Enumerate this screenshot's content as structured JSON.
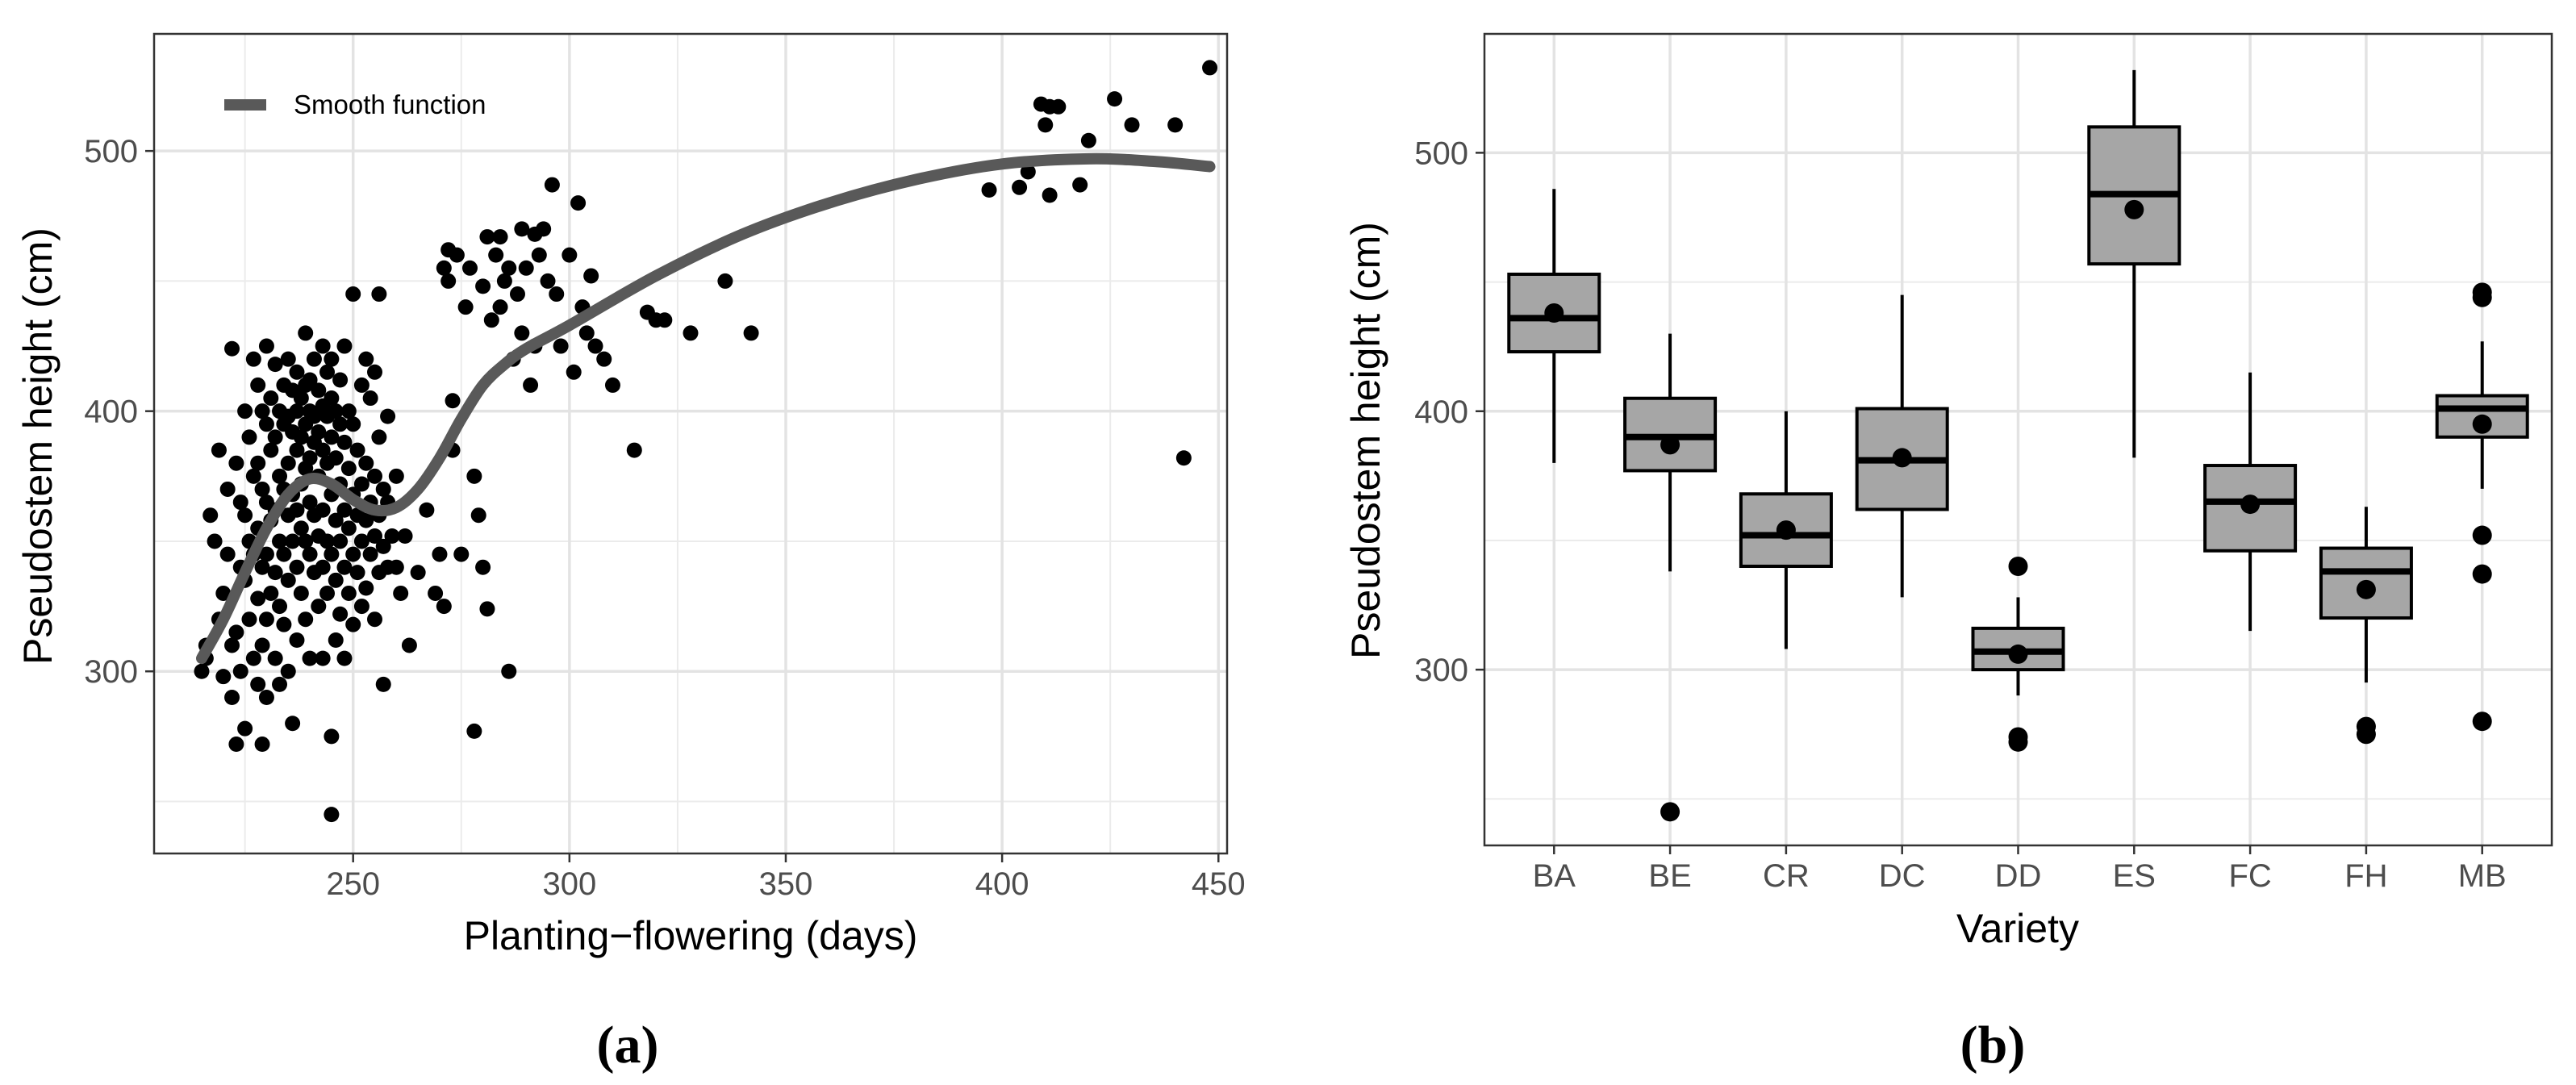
{
  "chart_data": [
    {
      "type": "scatter",
      "panel_label": "(a)",
      "xlabel": "Planting−flowering (days)",
      "ylabel": "Pseudostem height (cm)",
      "xlim": [
        204,
        452
      ],
      "ylim": [
        230,
        545
      ],
      "xticks": [
        250,
        300,
        350,
        400,
        450
      ],
      "yticks": [
        300,
        400,
        500
      ],
      "grid": true,
      "legend": {
        "position": "top-left",
        "entries": [
          "Smooth function"
        ]
      },
      "smooth_color": "#595959",
      "point_color": "#000000",
      "smooth": [
        [
          215,
          305
        ],
        [
          220,
          320
        ],
        [
          225,
          338
        ],
        [
          230,
          355
        ],
        [
          235,
          368
        ],
        [
          240,
          374
        ],
        [
          245,
          372
        ],
        [
          250,
          366
        ],
        [
          255,
          362
        ],
        [
          260,
          363
        ],
        [
          265,
          370
        ],
        [
          270,
          382
        ],
        [
          275,
          397
        ],
        [
          280,
          410
        ],
        [
          285,
          418
        ],
        [
          290,
          424
        ],
        [
          300,
          433
        ],
        [
          320,
          452
        ],
        [
          340,
          468
        ],
        [
          360,
          480
        ],
        [
          380,
          489
        ],
        [
          400,
          495
        ],
        [
          420,
          497
        ],
        [
          435,
          496
        ],
        [
          448,
          494
        ]
      ],
      "points": [
        [
          215,
          300
        ],
        [
          216,
          310
        ],
        [
          216,
          305
        ],
        [
          217,
          360
        ],
        [
          218,
          350
        ],
        [
          219,
          385
        ],
        [
          219,
          320
        ],
        [
          220,
          330
        ],
        [
          220,
          298
        ],
        [
          221,
          370
        ],
        [
          221,
          345
        ],
        [
          222,
          424
        ],
        [
          222,
          310
        ],
        [
          222,
          290
        ],
        [
          223,
          380
        ],
        [
          223,
          315
        ],
        [
          223,
          272
        ],
        [
          224,
          365
        ],
        [
          224,
          340
        ],
        [
          224,
          300
        ],
        [
          225,
          400
        ],
        [
          225,
          360
        ],
        [
          225,
          335
        ],
        [
          225,
          278
        ],
        [
          226,
          390
        ],
        [
          226,
          350
        ],
        [
          226,
          320
        ],
        [
          227,
          420
        ],
        [
          227,
          375
        ],
        [
          227,
          345
        ],
        [
          227,
          305
        ],
        [
          228,
          410
        ],
        [
          228,
          380
        ],
        [
          228,
          355
        ],
        [
          228,
          328
        ],
        [
          228,
          295
        ],
        [
          229,
          400
        ],
        [
          229,
          370
        ],
        [
          229,
          340
        ],
        [
          229,
          310
        ],
        [
          229,
          272
        ],
        [
          230,
          425
        ],
        [
          230,
          395
        ],
        [
          230,
          365
        ],
        [
          230,
          345
        ],
        [
          230,
          320
        ],
        [
          230,
          290
        ],
        [
          231,
          405
        ],
        [
          231,
          385
        ],
        [
          231,
          358
        ],
        [
          231,
          330
        ],
        [
          232,
          418
        ],
        [
          232,
          390
        ],
        [
          232,
          362
        ],
        [
          232,
          338
        ],
        [
          232,
          305
        ],
        [
          233,
          400
        ],
        [
          233,
          375
        ],
        [
          233,
          350
        ],
        [
          233,
          325
        ],
        [
          233,
          295
        ],
        [
          234,
          410
        ],
        [
          234,
          395
        ],
        [
          234,
          370
        ],
        [
          234,
          345
        ],
        [
          234,
          318
        ],
        [
          235,
          420
        ],
        [
          235,
          398
        ],
        [
          235,
          380
        ],
        [
          235,
          360
        ],
        [
          235,
          335
        ],
        [
          235,
          300
        ],
        [
          236,
          408
        ],
        [
          236,
          392
        ],
        [
          236,
          368
        ],
        [
          236,
          350
        ],
        [
          236,
          280
        ],
        [
          237,
          415
        ],
        [
          237,
          400
        ],
        [
          237,
          385
        ],
        [
          237,
          362
        ],
        [
          237,
          340
        ],
        [
          237,
          312
        ],
        [
          238,
          405
        ],
        [
          238,
          390
        ],
        [
          238,
          372
        ],
        [
          238,
          355
        ],
        [
          238,
          330
        ],
        [
          239,
          430
        ],
        [
          239,
          410
        ],
        [
          239,
          395
        ],
        [
          239,
          378
        ],
        [
          239,
          350
        ],
        [
          239,
          320
        ],
        [
          240,
          412
        ],
        [
          240,
          400
        ],
        [
          240,
          382
        ],
        [
          240,
          365
        ],
        [
          240,
          345
        ],
        [
          240,
          305
        ],
        [
          241,
          420
        ],
        [
          241,
          398
        ],
        [
          241,
          388
        ],
        [
          241,
          360
        ],
        [
          241,
          338
        ],
        [
          242,
          408
        ],
        [
          242,
          392
        ],
        [
          242,
          375
        ],
        [
          242,
          352
        ],
        [
          242,
          325
        ],
        [
          243,
          425
        ],
        [
          243,
          402
        ],
        [
          243,
          385
        ],
        [
          243,
          362
        ],
        [
          243,
          340
        ],
        [
          243,
          305
        ],
        [
          244,
          415
        ],
        [
          244,
          398
        ],
        [
          244,
          380
        ],
        [
          244,
          350
        ],
        [
          244,
          330
        ],
        [
          245,
          245
        ],
        [
          245,
          420
        ],
        [
          245,
          405
        ],
        [
          245,
          390
        ],
        [
          245,
          368
        ],
        [
          245,
          345
        ],
        [
          245,
          275
        ],
        [
          246,
          400
        ],
        [
          246,
          382
        ],
        [
          246,
          358
        ],
        [
          246,
          335
        ],
        [
          246,
          312
        ],
        [
          247,
          412
        ],
        [
          247,
          395
        ],
        [
          247,
          372
        ],
        [
          247,
          350
        ],
        [
          247,
          322
        ],
        [
          248,
          425
        ],
        [
          248,
          388
        ],
        [
          248,
          362
        ],
        [
          248,
          340
        ],
        [
          248,
          305
        ],
        [
          249,
          400
        ],
        [
          249,
          378
        ],
        [
          249,
          355
        ],
        [
          249,
          330
        ],
        [
          250,
          445
        ],
        [
          250,
          395
        ],
        [
          250,
          368
        ],
        [
          250,
          345
        ],
        [
          250,
          318
        ],
        [
          251,
          385
        ],
        [
          251,
          360
        ],
        [
          251,
          338
        ],
        [
          252,
          410
        ],
        [
          252,
          372
        ],
        [
          252,
          350
        ],
        [
          252,
          325
        ],
        [
          253,
          420
        ],
        [
          253,
          380
        ],
        [
          253,
          358
        ],
        [
          253,
          332
        ],
        [
          254,
          405
        ],
        [
          254,
          365
        ],
        [
          254,
          345
        ],
        [
          255,
          415
        ],
        [
          255,
          375
        ],
        [
          255,
          352
        ],
        [
          255,
          320
        ],
        [
          256,
          445
        ],
        [
          256,
          390
        ],
        [
          256,
          360
        ],
        [
          256,
          338
        ],
        [
          257,
          370
        ],
        [
          257,
          348
        ],
        [
          257,
          295
        ],
        [
          258,
          398
        ],
        [
          258,
          365
        ],
        [
          258,
          340
        ],
        [
          259,
          352
        ],
        [
          260,
          340
        ],
        [
          260,
          375
        ],
        [
          261,
          330
        ],
        [
          262,
          352
        ],
        [
          263,
          310
        ],
        [
          265,
          338
        ],
        [
          267,
          362
        ],
        [
          269,
          330
        ],
        [
          270,
          345
        ],
        [
          271,
          455
        ],
        [
          271,
          325
        ],
        [
          272,
          462
        ],
        [
          272,
          450
        ],
        [
          273,
          404
        ],
        [
          273,
          385
        ],
        [
          274,
          460
        ],
        [
          275,
          345
        ],
        [
          276,
          440
        ],
        [
          277,
          455
        ],
        [
          278,
          277
        ],
        [
          278,
          375
        ],
        [
          279,
          360
        ],
        [
          280,
          448
        ],
        [
          280,
          340
        ],
        [
          281,
          467
        ],
        [
          281,
          324
        ],
        [
          282,
          435
        ],
        [
          283,
          460
        ],
        [
          284,
          467
        ],
        [
          284,
          440
        ],
        [
          285,
          450
        ],
        [
          286,
          300
        ],
        [
          286,
          455
        ],
        [
          287,
          420
        ],
        [
          288,
          445
        ],
        [
          289,
          470
        ],
        [
          289,
          430
        ],
        [
          290,
          455
        ],
        [
          291,
          410
        ],
        [
          292,
          468
        ],
        [
          292,
          425
        ],
        [
          293,
          460
        ],
        [
          294,
          470
        ],
        [
          295,
          450
        ],
        [
          296,
          487
        ],
        [
          297,
          445
        ],
        [
          298,
          425
        ],
        [
          300,
          460
        ],
        [
          301,
          415
        ],
        [
          302,
          480
        ],
        [
          303,
          440
        ],
        [
          304,
          430
        ],
        [
          305,
          452
        ],
        [
          306,
          425
        ],
        [
          308,
          420
        ],
        [
          310,
          410
        ],
        [
          315,
          385
        ],
        [
          318,
          438
        ],
        [
          320,
          435
        ],
        [
          322,
          435
        ],
        [
          328,
          430
        ],
        [
          336,
          450
        ],
        [
          342,
          430
        ],
        [
          397,
          485
        ],
        [
          404,
          486
        ],
        [
          406,
          492
        ],
        [
          409,
          518
        ],
        [
          410,
          510
        ],
        [
          411,
          517
        ],
        [
          411,
          483
        ],
        [
          413,
          517
        ],
        [
          418,
          487
        ],
        [
          420,
          504
        ],
        [
          426,
          520
        ],
        [
          430,
          510
        ],
        [
          440,
          510
        ],
        [
          442,
          382
        ],
        [
          448,
          532
        ]
      ]
    },
    {
      "type": "box",
      "panel_label": "(b)",
      "xlabel": "Variety",
      "ylabel": "Pseudostem height (cm)",
      "ylim": [
        232,
        546
      ],
      "yticks": [
        300,
        400,
        500
      ],
      "grid": true,
      "box_fill": "#a6a6a6",
      "categories": [
        "BA",
        "BE",
        "CR",
        "DC",
        "DD",
        "ES",
        "FC",
        "FH",
        "MB"
      ],
      "boxes": [
        {
          "category": "BA",
          "min": 380,
          "q1": 423,
          "median": 436,
          "q3": 453,
          "max": 486,
          "mean": 438,
          "outliers": []
        },
        {
          "category": "BE",
          "min": 338,
          "q1": 377,
          "median": 390,
          "q3": 405,
          "max": 430,
          "mean": 387,
          "outliers": [
            245
          ]
        },
        {
          "category": "CR",
          "min": 308,
          "q1": 340,
          "median": 352,
          "q3": 368,
          "max": 400,
          "mean": 354,
          "outliers": []
        },
        {
          "category": "DC",
          "min": 328,
          "q1": 362,
          "median": 381,
          "q3": 401,
          "max": 445,
          "mean": 382,
          "outliers": []
        },
        {
          "category": "DD",
          "min": 290,
          "q1": 300,
          "median": 307,
          "q3": 316,
          "max": 328,
          "mean": 306,
          "outliers": [
            272,
            274,
            340
          ]
        },
        {
          "category": "ES",
          "min": 382,
          "q1": 457,
          "median": 484,
          "q3": 510,
          "max": 532,
          "mean": 478,
          "outliers": []
        },
        {
          "category": "FC",
          "min": 315,
          "q1": 346,
          "median": 365,
          "q3": 379,
          "max": 415,
          "mean": 364,
          "outliers": []
        },
        {
          "category": "FH",
          "min": 295,
          "q1": 320,
          "median": 338,
          "q3": 347,
          "max": 363,
          "mean": 331,
          "outliers": [
            275,
            278
          ]
        },
        {
          "category": "MB",
          "min": 370,
          "q1": 390,
          "median": 401,
          "q3": 406,
          "max": 427,
          "mean": 395,
          "outliers": [
            280,
            337,
            352,
            444,
            446
          ]
        }
      ]
    }
  ]
}
